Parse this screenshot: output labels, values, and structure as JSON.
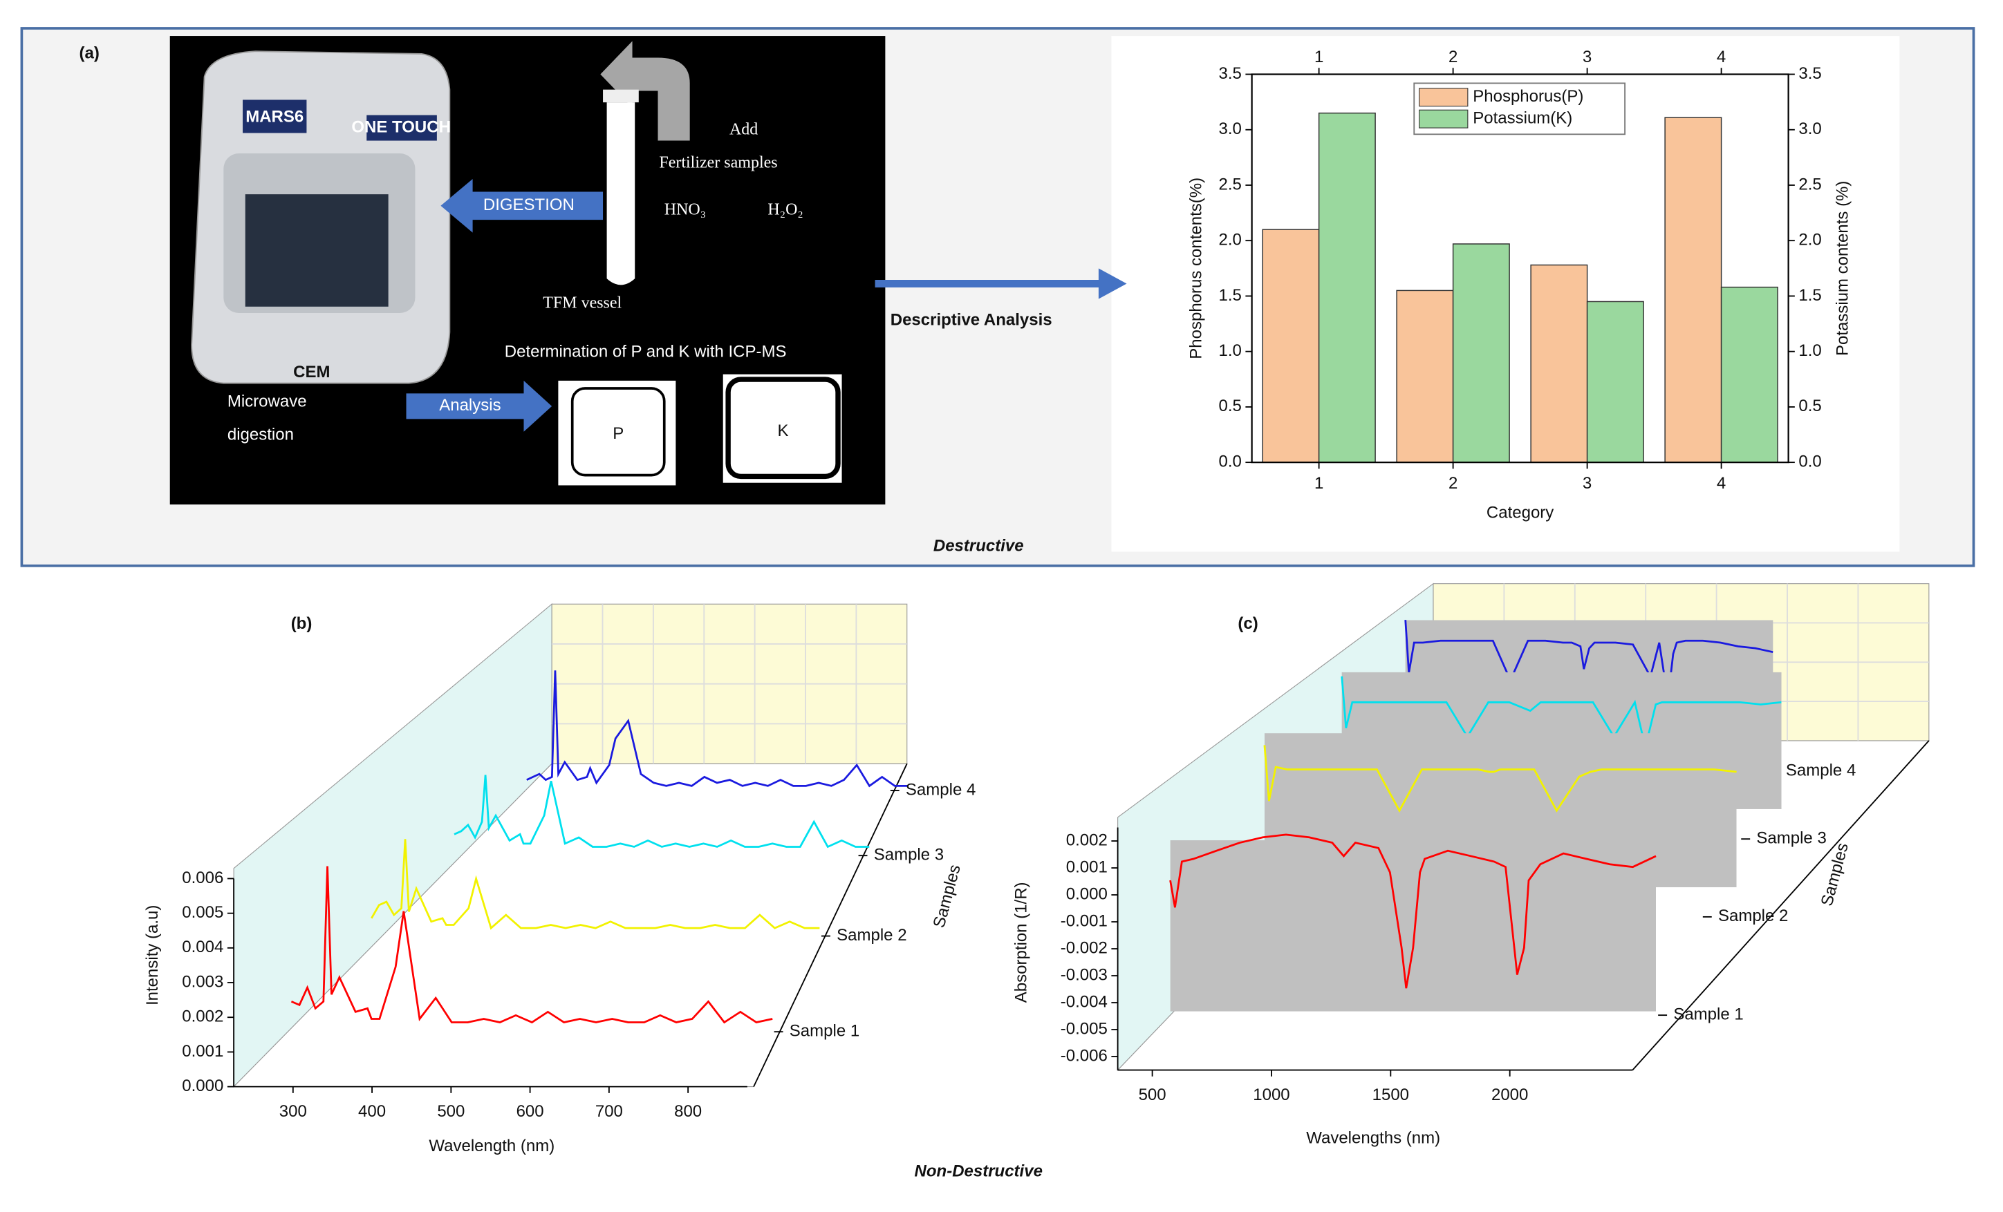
{
  "panel_a": {
    "label": "(a)",
    "device": [
      "MARS6",
      "ONE TOUCH",
      "CEM"
    ],
    "add": "Add",
    "samples": "Fertilizer samples",
    "reagents": [
      "HNO₃",
      "H₂O₂"
    ],
    "vessel": "TFM vessel",
    "digestion": "DIGESTION",
    "determination": "Determination of P and K with ICP-MS",
    "microwave": [
      "Microwave",
      "digestion"
    ],
    "analysis": "Analysis",
    "keys": [
      "P",
      "K"
    ],
    "arrow_label": "Descriptive Analysis",
    "caption": "Destructive"
  },
  "caption_bottom": "Non-Destructive",
  "chart_data": [
    {
      "type": "bar",
      "categories": [
        "1",
        "2",
        "3",
        "4"
      ],
      "series": [
        {
          "name": "Phosphorus(P)",
          "color": "#f9c49a",
          "values": [
            2.1,
            1.55,
            1.78,
            3.11
          ]
        },
        {
          "name": "Potassium(K)",
          "color": "#9ad89e",
          "values": [
            3.15,
            1.97,
            1.45,
            1.58
          ],
          "axis": "y2"
        }
      ],
      "xlabel": "Category",
      "ylabel": "Phosphorus contents(%)",
      "y2label": "Potassium contents (%)",
      "ylim": [
        0,
        3.5
      ],
      "yticks": [
        {
          "value": 0,
          "label": "0.0"
        },
        {
          "value": 0.5,
          "label": "0.5"
        },
        {
          "value": 1,
          "label": "1.0"
        },
        {
          "value": 1.5,
          "label": "1.5"
        },
        {
          "value": 2,
          "label": "2.0"
        },
        {
          "value": 2.5,
          "label": "2.5"
        },
        {
          "value": 3,
          "label": "3.0"
        },
        {
          "value": 3.5,
          "label": "3.5"
        }
      ],
      "y2lim": [
        0,
        3.5
      ],
      "y2ticks": [
        {
          "value": 0,
          "label": "0.0"
        },
        {
          "value": 0.5,
          "label": "0.5"
        },
        {
          "value": 1,
          "label": "1.0"
        },
        {
          "value": 1.5,
          "label": "1.5"
        },
        {
          "value": 2,
          "label": "2.0"
        },
        {
          "value": 2.5,
          "label": "2.5"
        },
        {
          "value": 3,
          "label": "3.0"
        },
        {
          "value": 3.5,
          "label": "3.5"
        }
      ],
      "legend": "top"
    },
    {
      "type": "line3d",
      "panel": "(b)",
      "x": [
        300,
        310,
        320,
        330,
        340,
        345,
        350,
        360,
        380,
        395,
        400,
        410,
        430,
        440,
        460,
        480,
        500,
        520,
        540,
        560,
        580,
        600,
        620,
        640,
        660,
        680,
        700,
        720,
        740,
        760,
        780,
        800,
        820,
        840,
        860,
        880,
        900
      ],
      "series": [
        {
          "name": "Sample 1",
          "color": "#ff0000",
          "values": [
            0.0008,
            0.0007,
            0.0012,
            0.0006,
            0.0008,
            0.0047,
            0.001,
            0.0015,
            0.0005,
            0.0006,
            0.0003,
            0.0003,
            0.0018,
            0.0034,
            0.0003,
            0.0009,
            0.0002,
            0.0002,
            0.0003,
            0.0002,
            0.0004,
            0.0002,
            0.0005,
            0.0002,
            0.0003,
            0.0002,
            0.0003,
            0.0002,
            0.0002,
            0.0004,
            0.0002,
            0.0003,
            0.0008,
            0.0002,
            0.0005,
            0.0002,
            0.0003
          ]
        },
        {
          "name": "Sample 2",
          "color": "#f2f200",
          "values": [
            0.0005,
            0.0009,
            0.001,
            0.0006,
            0.0008,
            0.0029,
            0.0007,
            0.0014,
            0.0004,
            0.0005,
            0.0003,
            0.0003,
            0.0008,
            0.0017,
            0.0002,
            0.0006,
            0.0002,
            0.0002,
            0.0003,
            0.0002,
            0.0003,
            0.0002,
            0.0004,
            0.0002,
            0.0002,
            0.0002,
            0.0003,
            0.0002,
            0.0002,
            0.0003,
            0.0002,
            0.0002,
            0.0006,
            0.0002,
            0.0004,
            0.0002,
            0.0002
          ]
        },
        {
          "name": "Sample 3",
          "color": "#00e0ee",
          "values": [
            0.0006,
            0.0007,
            0.0009,
            0.0005,
            0.001,
            0.0025,
            0.0008,
            0.0012,
            0.0004,
            0.0006,
            0.0003,
            0.0003,
            0.0012,
            0.0023,
            0.0003,
            0.0005,
            0.0002,
            0.0002,
            0.0003,
            0.0002,
            0.0004,
            0.0002,
            0.0003,
            0.0002,
            0.0003,
            0.0002,
            0.0004,
            0.0002,
            0.0002,
            0.0003,
            0.0002,
            0.0002,
            0.001,
            0.0002,
            0.0004,
            0.0002,
            0.0002
          ]
        },
        {
          "name": "Sample 4",
          "color": "#1a1adf",
          "values": [
            0.0004,
            0.0005,
            0.0006,
            0.0004,
            0.0005,
            0.0041,
            0.0006,
            0.001,
            0.0004,
            0.0005,
            0.0008,
            0.0003,
            0.0009,
            0.0018,
            0.0024,
            0.0006,
            0.0003,
            0.0002,
            0.0003,
            0.0002,
            0.0005,
            0.0003,
            0.0004,
            0.0002,
            0.0003,
            0.0002,
            0.0004,
            0.0002,
            0.0002,
            0.0003,
            0.0002,
            0.0004,
            0.0009,
            0.0002,
            0.0005,
            0.0002,
            0.0002
          ]
        }
      ],
      "xlabel": "Wavelength (nm)",
      "ylabel": "Intensity (a.u)",
      "zlabel": "Samples",
      "xlim": [
        225,
        875
      ],
      "xticks": [
        300,
        400,
        500,
        600,
        700,
        800
      ],
      "ylim": [
        0,
        0.006
      ],
      "yticks": [
        {
          "value": 0,
          "label": "0.000"
        },
        {
          "value": 0.001,
          "label": "0.001"
        },
        {
          "value": 0.002,
          "label": "0.002"
        },
        {
          "value": 0.003,
          "label": "0.003"
        },
        {
          "value": 0.004,
          "label": "0.004"
        },
        {
          "value": 0.005,
          "label": "0.005"
        },
        {
          "value": 0.006,
          "label": "0.006"
        }
      ]
    },
    {
      "type": "line3d",
      "panel": "(c)",
      "x": [
        400,
        420,
        450,
        500,
        600,
        700,
        800,
        900,
        1000,
        1100,
        1150,
        1200,
        1300,
        1350,
        1400,
        1420,
        1450,
        1480,
        1500,
        1600,
        1700,
        1800,
        1850,
        1900,
        1930,
        1950,
        2000,
        2100,
        2200,
        2300,
        2400,
        2500
      ],
      "series": [
        {
          "name": "Sample 1",
          "color": "#ff0000",
          "values": [
            0.0005,
            -0.0005,
            0.0012,
            0.0013,
            0.0016,
            0.0019,
            0.0021,
            0.0022,
            0.0021,
            0.0019,
            0.0014,
            0.0019,
            0.0017,
            0.0008,
            -0.002,
            -0.0035,
            -0.002,
            0.0008,
            0.0013,
            0.0016,
            0.0014,
            0.0012,
            0.001,
            -0.003,
            -0.002,
            0.0005,
            0.0011,
            0.0015,
            0.0013,
            0.0011,
            0.001,
            0.0014
          ]
        },
        {
          "name": "Sample 2",
          "color": "#f2f200",
          "values": [
            0.0015,
            -0.0008,
            0.0006,
            0.0005,
            0.0005,
            0.0005,
            0.0005,
            0.0005,
            -0.0012,
            0.0005,
            0.0005,
            0.0005,
            0.0005,
            0.0005,
            0.0004,
            0.0004,
            0.0005,
            0.0005,
            0.0005,
            0.0005,
            -0.0012,
            0.0002,
            0.0004,
            0.0005,
            0.0005,
            0.0005,
            0.0005,
            0.0005,
            0.0005,
            0.0005,
            0.0005,
            0.0004
          ]
        },
        {
          "name": "Sample 3",
          "color": "#00e0ee",
          "values": [
            0.0018,
            -0.0006,
            0.0006,
            0.0006,
            0.0006,
            0.0006,
            0.0006,
            0.0006,
            -0.001,
            0.0006,
            0.0006,
            0.0006,
            0.0002,
            0.0006,
            0.0006,
            0.0006,
            0.0006,
            0.0006,
            0.0006,
            0.0006,
            -0.001,
            0.0006,
            -0.0015,
            0.0005,
            0.0006,
            0.0006,
            0.0006,
            0.0006,
            0.0006,
            0.0006,
            0.0005,
            0.0006
          ]
        },
        {
          "name": "Sample 4",
          "color": "#1a1adf",
          "values": [
            0.002,
            -0.0008,
            0.0008,
            0.0008,
            0.0009,
            0.0009,
            0.0009,
            0.0009,
            -0.0012,
            0.0009,
            0.0009,
            0.0009,
            0.0008,
            0.0008,
            0.0006,
            -0.0006,
            0.0005,
            0.0008,
            0.0008,
            0.0008,
            0.0007,
            -0.001,
            0.0008,
            -0.0022,
            0.0002,
            0.0008,
            0.0009,
            0.0009,
            0.0008,
            0.0006,
            0.0005,
            0.0003
          ]
        }
      ],
      "xlabel": "Wavelengths (nm)",
      "ylabel": "Absorption (1/R)",
      "zlabel": "Samples",
      "xlim": [
        355,
        2515
      ],
      "xticks": [
        500,
        1000,
        1500,
        2000
      ],
      "ylim": [
        -0.0065,
        0.0025
      ],
      "yticks": [
        {
          "value": 0.002,
          "label": "0.002"
        },
        {
          "value": 0.001,
          "label": "0.001"
        },
        {
          "value": 0,
          "label": "0.000"
        },
        {
          "value": -0.001,
          "label": "-0.001"
        },
        {
          "value": -0.002,
          "label": "-0.002"
        },
        {
          "value": -0.003,
          "label": "-0.003"
        },
        {
          "value": -0.004,
          "label": "-0.004"
        },
        {
          "value": -0.005,
          "label": "-0.005"
        },
        {
          "value": -0.006,
          "label": "-0.006"
        }
      ]
    }
  ]
}
